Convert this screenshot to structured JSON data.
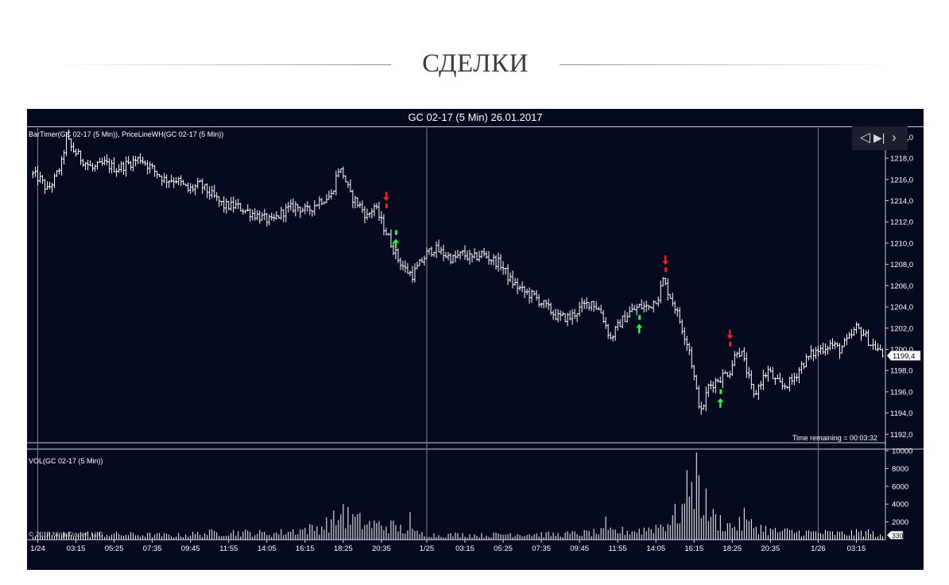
{
  "page": {
    "heading": "СДЕЛКИ"
  },
  "chart_header": "GC 02-17 (5 Min)  26.01.2017",
  "navigator": {
    "prev_glyph": "◁",
    "bar_glyph": "▶|",
    "next_glyph": "›"
  },
  "colors": {
    "background": "#050a1f",
    "bars": "#ffffff",
    "sell_signal": "#ff1a1a",
    "buy_signal": "#1aff3a",
    "grid": "#7c8597"
  },
  "chart_data": [
    {
      "type": "ohlc",
      "name": "price",
      "indicators_label": "BarTimer(GC 02-17 (5 Min)), PriceLineWH(GC 02-17 (5 Min))",
      "ylim": [
        1191.2,
        1221.0
      ],
      "y_ticks": [
        1192.0,
        1194.0,
        1196.0,
        1198.0,
        1200.0,
        1202.0,
        1204.0,
        1206.0,
        1208.0,
        1210.0,
        1212.0,
        1214.0,
        1216.0,
        1218.0,
        1220.0
      ],
      "y_tick_format": "comma-1",
      "last_price": "1199,4",
      "time_remaining": "Time remaining = 00:03:32",
      "close_path": [
        [
          0,
          1216.5
        ],
        [
          3,
          1216.0
        ],
        [
          6,
          1215.0
        ],
        [
          9,
          1216.0
        ],
        [
          12,
          1217.5
        ],
        [
          14,
          1220.0
        ],
        [
          16,
          1219.0
        ],
        [
          20,
          1218.0
        ],
        [
          25,
          1217.0
        ],
        [
          30,
          1217.5
        ],
        [
          35,
          1217.0
        ],
        [
          40,
          1217.5
        ],
        [
          45,
          1218.0
        ],
        [
          50,
          1217.0
        ],
        [
          55,
          1216.0
        ],
        [
          60,
          1216.0
        ],
        [
          65,
          1215.0
        ],
        [
          70,
          1215.5
        ],
        [
          75,
          1214.5
        ],
        [
          80,
          1213.5
        ],
        [
          85,
          1213.5
        ],
        [
          90,
          1213.0
        ],
        [
          95,
          1212.5
        ],
        [
          100,
          1212.0
        ],
        [
          105,
          1213.0
        ],
        [
          110,
          1213.5
        ],
        [
          115,
          1213.0
        ],
        [
          120,
          1214.0
        ],
        [
          125,
          1214.5
        ],
        [
          128,
          1217.0
        ],
        [
          130,
          1216.5
        ],
        [
          133,
          1214.5
        ],
        [
          137,
          1213.5
        ],
        [
          140,
          1212.5
        ],
        [
          143,
          1213.5
        ],
        [
          146,
          1212.0
        ],
        [
          148,
          1211.0
        ],
        [
          150,
          1210.0
        ],
        [
          153,
          1208.5
        ],
        [
          156,
          1207.5
        ],
        [
          159,
          1207.0
        ],
        [
          162,
          1208.0
        ],
        [
          165,
          1209.0
        ],
        [
          168,
          1209.5
        ],
        [
          172,
          1209.0
        ],
        [
          176,
          1208.5
        ],
        [
          180,
          1209.0
        ],
        [
          184,
          1208.5
        ],
        [
          188,
          1209.0
        ],
        [
          192,
          1208.5
        ],
        [
          196,
          1208.0
        ],
        [
          200,
          1206.5
        ],
        [
          205,
          1205.5
        ],
        [
          210,
          1205.0
        ],
        [
          215,
          1204.0
        ],
        [
          220,
          1203.0
        ],
        [
          225,
          1203.0
        ],
        [
          230,
          1204.0
        ],
        [
          234,
          1204.5
        ],
        [
          238,
          1203.5
        ],
        [
          242,
          1201.0
        ],
        [
          246,
          1202.5
        ],
        [
          250,
          1203.5
        ],
        [
          254,
          1204.0
        ],
        [
          258,
          1204.0
        ],
        [
          262,
          1205.0
        ],
        [
          264,
          1206.5
        ],
        [
          266,
          1205.5
        ],
        [
          269,
          1204.0
        ],
        [
          272,
          1202.0
        ],
        [
          275,
          1200.0
        ],
        [
          278,
          1196.0
        ],
        [
          280,
          1194.0
        ],
        [
          283,
          1196.5
        ],
        [
          286,
          1197.0
        ],
        [
          289,
          1197.5
        ],
        [
          292,
          1198.0
        ],
        [
          295,
          1200.0
        ],
        [
          297,
          1199.5
        ],
        [
          299,
          1198.0
        ],
        [
          302,
          1195.5
        ],
        [
          305,
          1197.0
        ],
        [
          308,
          1198.0
        ],
        [
          311,
          1197.0
        ],
        [
          314,
          1196.5
        ],
        [
          318,
          1197.0
        ],
        [
          322,
          1198.5
        ],
        [
          326,
          1199.5
        ],
        [
          330,
          1200.0
        ],
        [
          334,
          1200.5
        ],
        [
          338,
          1200.0
        ],
        [
          342,
          1201.0
        ],
        [
          345,
          1202.0
        ],
        [
          348,
          1201.5
        ],
        [
          351,
          1200.5
        ],
        [
          354,
          1200.0
        ],
        [
          356,
          1199.4
        ]
      ],
      "sell_signals": [
        {
          "bar": 148,
          "price": 1213.5
        },
        {
          "bar": 265,
          "price": 1207.5
        },
        {
          "bar": 292,
          "price": 1200.5
        }
      ],
      "buy_signals": [
        {
          "bar": 152,
          "price": 1211.0
        },
        {
          "bar": 254,
          "price": 1203.0
        },
        {
          "bar": 288,
          "price": 1196.0
        }
      ]
    },
    {
      "type": "bar",
      "name": "volume",
      "indicator_label": "VOL(GC 02-17 (5 Min))",
      "ylim": [
        0,
        10000
      ],
      "y_ticks": [
        2000,
        4000,
        6000,
        8000,
        10000
      ],
      "last_value": "330",
      "copyright": "© 2017 NinjaTrader, LLC",
      "volume_profile": [
        [
          0,
          500
        ],
        [
          20,
          700
        ],
        [
          40,
          600
        ],
        [
          60,
          500
        ],
        [
          80,
          900
        ],
        [
          100,
          700
        ],
        [
          120,
          1400
        ],
        [
          130,
          2800
        ],
        [
          140,
          1800
        ],
        [
          150,
          1600
        ],
        [
          160,
          800
        ],
        [
          170,
          500
        ],
        [
          180,
          600
        ],
        [
          190,
          500
        ],
        [
          200,
          700
        ],
        [
          220,
          600
        ],
        [
          240,
          900
        ],
        [
          255,
          1100
        ],
        [
          265,
          1800
        ],
        [
          272,
          3500
        ],
        [
          276,
          7000
        ],
        [
          280,
          5000
        ],
        [
          285,
          2500
        ],
        [
          292,
          1600
        ],
        [
          300,
          1800
        ],
        [
          310,
          1000
        ],
        [
          320,
          900
        ],
        [
          330,
          800
        ],
        [
          340,
          700
        ],
        [
          350,
          900
        ],
        [
          356,
          330
        ]
      ],
      "volume_spikes": [
        {
          "bar": 278,
          "value": 9800
        },
        {
          "bar": 276,
          "value": 6500
        },
        {
          "bar": 130,
          "value": 4000
        },
        {
          "bar": 158,
          "value": 3100
        },
        {
          "bar": 298,
          "value": 3600
        },
        {
          "bar": 240,
          "value": 2600
        }
      ]
    }
  ],
  "x_axis": {
    "bar_count": 357,
    "ticks": [
      {
        "bar": 2,
        "label": "1/24",
        "separator": true
      },
      {
        "bar": 18,
        "label": "03:15"
      },
      {
        "bar": 34,
        "label": "05:25"
      },
      {
        "bar": 50,
        "label": "07:35"
      },
      {
        "bar": 66,
        "label": "09:45"
      },
      {
        "bar": 82,
        "label": "11:55"
      },
      {
        "bar": 98,
        "label": "14:05"
      },
      {
        "bar": 114,
        "label": "16:15"
      },
      {
        "bar": 130,
        "label": "18:25"
      },
      {
        "bar": 146,
        "label": "20:35"
      },
      {
        "bar": 165,
        "label": "1/25",
        "separator": true
      },
      {
        "bar": 181,
        "label": "03:15"
      },
      {
        "bar": 197,
        "label": "05:25"
      },
      {
        "bar": 213,
        "label": "07:35"
      },
      {
        "bar": 229,
        "label": "09:45"
      },
      {
        "bar": 245,
        "label": "11:55"
      },
      {
        "bar": 261,
        "label": "14:05"
      },
      {
        "bar": 277,
        "label": "16:15"
      },
      {
        "bar": 293,
        "label": "18:25"
      },
      {
        "bar": 309,
        "label": "20:35"
      },
      {
        "bar": 329,
        "label": "1/26",
        "separator": true
      },
      {
        "bar": 345,
        "label": "03:15"
      }
    ]
  }
}
